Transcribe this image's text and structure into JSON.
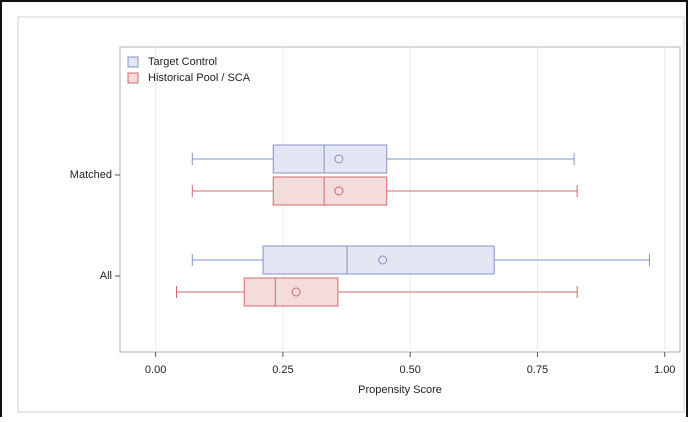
{
  "chart_data": {
    "type": "boxplot",
    "x_label": "Propensity Score",
    "categories": [
      "Matched",
      "All"
    ],
    "xlim": [
      -0.07,
      1.03
    ],
    "xticks": [
      {
        "value": 0,
        "label": "0.00"
      },
      {
        "value": 0.25,
        "label": "0.25"
      },
      {
        "value": 0.5,
        "label": "0.50"
      },
      {
        "value": 0.75,
        "label": "0.75"
      },
      {
        "value": 1,
        "label": "1.00"
      }
    ],
    "grid": true,
    "legend": "top-left",
    "series": [
      {
        "name": "Target Control",
        "color": "#8393c9",
        "fill": "#e4e7f3",
        "boxes": [
          {
            "min": 0.072,
            "q1": 0.231,
            "median": 0.331,
            "mean": 0.36,
            "q3": 0.454,
            "max": 0.822
          },
          {
            "min": 0.072,
            "q1": 0.211,
            "median": 0.376,
            "mean": 0.446,
            "q3": 0.665,
            "max": 0.97
          }
        ]
      },
      {
        "name": "Historical Pool / SCA",
        "color": "#d06a6a",
        "fill": "#f5dcdc",
        "boxes": [
          {
            "min": 0.072,
            "q1": 0.231,
            "median": 0.331,
            "mean": 0.36,
            "q3": 0.454,
            "max": 0.828
          },
          {
            "min": 0.041,
            "q1": 0.174,
            "median": 0.235,
            "mean": 0.276,
            "q3": 0.358,
            "max": 0.828
          }
        ]
      }
    ]
  }
}
